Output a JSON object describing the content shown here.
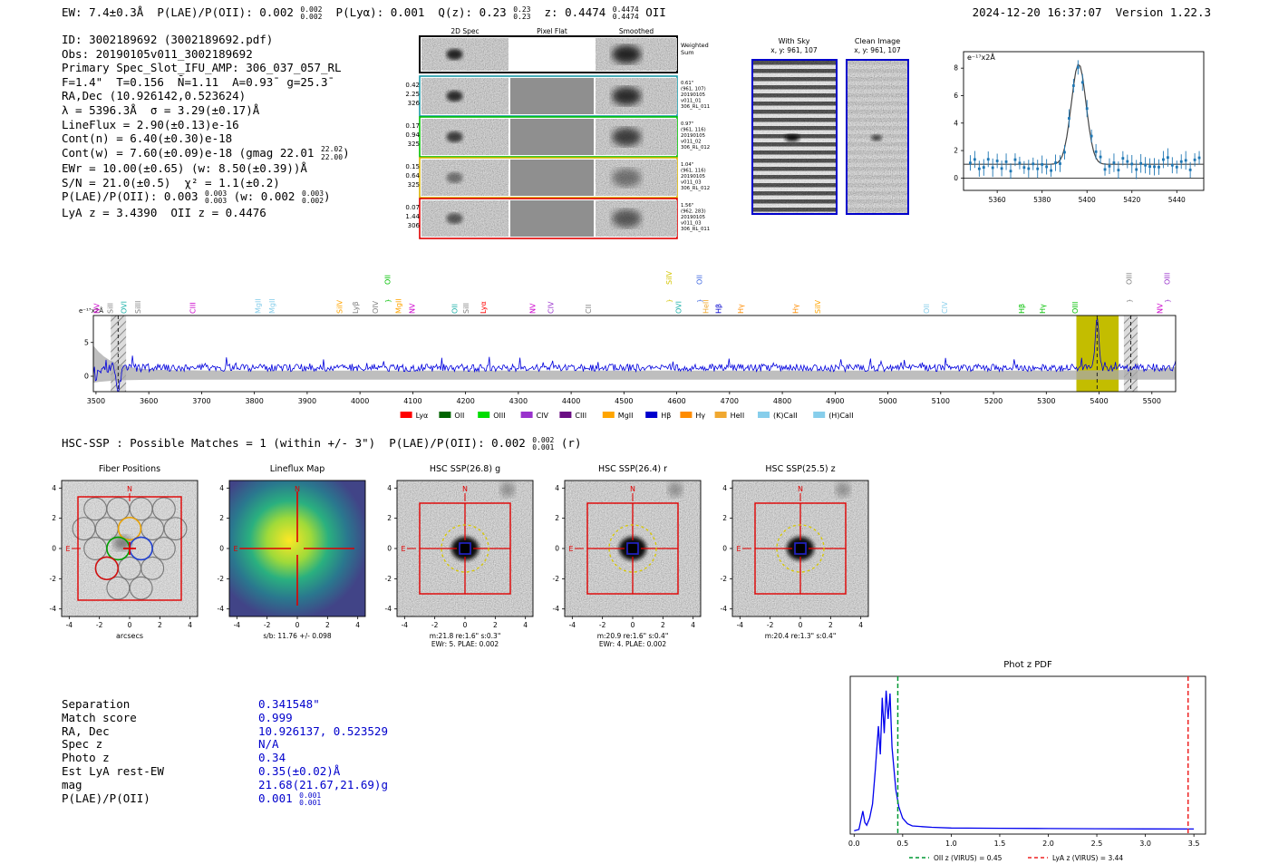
{
  "meta": {
    "timestamp": "2024-12-20 16:37:07",
    "version": "Version 1.22.3"
  },
  "header": {
    "segments": [
      {
        "t": "EW: 7.4±0.3Å  P(LAE)/P(OII): 0.002 "
      },
      {
        "sup": "0.002",
        "sub": "0.002"
      },
      {
        "t": "  P(Lyα): 0.001  Q(z): 0.23 "
      },
      {
        "sup": "0.23",
        "sub": "0.23"
      },
      {
        "t": "  z: 0.4474 "
      },
      {
        "sup": "0.4474",
        "sub": "0.4474"
      },
      {
        "t": " OII"
      }
    ]
  },
  "info": {
    "lines": [
      [
        {
          "t": "ID: 3002189692 (3002189692.pdf)"
        }
      ],
      [
        {
          "t": "Obs: 20190105v011_3002189692"
        }
      ],
      [
        {
          "t": "Primary Spec_Slot_IFU_AMP: 306_037_057_RL"
        }
      ],
      [
        {
          "t": "F=1.4\"  T=0.156  N̄=1.11  A=0.93̄  g=25.3̄"
        }
      ],
      [
        {
          "t": "RA,Dec (10.926142,0.523624)"
        }
      ],
      [
        {
          "t": "λ = 5396.3Å  σ = 3.29(±0.17)Å"
        }
      ],
      [
        {
          "t": "LineFlux = 2.90(±0.13)e-16"
        }
      ],
      [
        {
          "t": "Cont(n) = 6.40(±0.30)e-18"
        }
      ],
      [
        {
          "t": "Cont(w) = 7.60(±0.09)e-18 (gmag 22.01 "
        },
        {
          "sup": "22.02",
          "sub": "22.00"
        },
        {
          "t": ")"
        }
      ],
      [
        {
          "t": "EWr = 10.00(±0.65) (w: 8.50(±0.39))Å"
        }
      ],
      [
        {
          "t": "S/N = 21.0(±0.5)  χ² = 1.1(±0.2)"
        }
      ],
      [
        {
          "t": "P(LAE)/P(OII): 0.003 "
        },
        {
          "sup": "0.003",
          "sub": "0.003"
        },
        {
          "t": " (w: 0.002 "
        },
        {
          "sup": "0.003",
          "sub": "0.002"
        },
        {
          "t": ")"
        }
      ],
      [
        {
          "t": "LyA z = 3.4390  OII z = 0.4476"
        }
      ]
    ]
  },
  "spec2d": {
    "col_headers": [
      "2D Spec",
      "Pixel Flat",
      "Smoothed"
    ],
    "weighted_sum": [
      "Weighted",
      "Sum"
    ],
    "rows": [
      {
        "border": "#000000",
        "left": [],
        "right": []
      },
      {
        "border": "#1a9aa8",
        "left": [
          "0.42",
          "2.25",
          "326"
        ],
        "right": [
          "0.61\"",
          "(961, 107)",
          "20190105",
          "v011_01",
          "306_RL_011"
        ]
      },
      {
        "border": "#00c000",
        "left": [
          "0.17",
          "0.94",
          "325"
        ],
        "right": [
          "0.97\"",
          "(961, 116)",
          "20190105",
          "v011_02",
          "306_RL_012"
        ]
      },
      {
        "border": "#d8b400",
        "left": [
          "0.15",
          "0.64",
          "325"
        ],
        "right": [
          "1.04\"",
          "(961, 116)",
          "20190105",
          "v011_03",
          "306_RL_012"
        ]
      },
      {
        "border": "#e00000",
        "left": [
          "0.07",
          "1.44",
          "306"
        ],
        "right": [
          "1.56\"",
          "(962, 283)",
          "20190105",
          "v011_03",
          "306_RL_011"
        ]
      }
    ]
  },
  "sky_panels": {
    "with_sky": {
      "title": "With Sky",
      "coords": "x, y: 961, 107"
    },
    "clean": {
      "title": "Clean Image",
      "coords": "x, y: 961, 107"
    },
    "border_color": "#0000cc"
  },
  "chart_data": [
    {
      "id": "zoom_spectrum",
      "type": "line",
      "ylabel": "e⁻¹⁷x2Å",
      "x_ticks": [
        5360,
        5380,
        5400,
        5420,
        5440
      ],
      "y_ticks": [
        0,
        2,
        4,
        6,
        8
      ],
      "xlim": [
        5345,
        5452
      ],
      "ylim": [
        -0.9,
        9.2
      ],
      "gaussian_fit": {
        "center": 5396.3,
        "sigma": 3.29,
        "peak": 8.3,
        "baseline": 1.0
      },
      "point_color": "#1f77b4",
      "fit_color": "#444444"
    },
    {
      "id": "full_spectrum",
      "type": "line",
      "ylabel": "e⁻¹⁷x2Å",
      "x_ticks": [
        3500,
        3600,
        3700,
        3800,
        3900,
        4000,
        4100,
        4200,
        4300,
        4400,
        4500,
        4600,
        4700,
        4800,
        4900,
        5000,
        5100,
        5200,
        5300,
        5400,
        5500
      ],
      "y_ticks": [
        0,
        5
      ],
      "xlim": [
        3495,
        5545
      ],
      "ylim": [
        -2.3,
        9
      ],
      "emission_line": {
        "wavelength": 5396.3,
        "peak": 7.4,
        "sigma": 3.4
      },
      "absorption_dip": {
        "wavelength": 3542,
        "depth": -3.6
      },
      "highlight_band": {
        "x0": 5357,
        "x1": 5437,
        "color": "#c3bd00"
      },
      "hatched_bands": [
        [
          3528,
          3557
        ],
        [
          5447,
          5473
        ]
      ],
      "dashed_lines": [
        3542,
        5396.3,
        5460
      ],
      "line_color": "#0000dd",
      "envelope_color": "#a8a8a8",
      "legend": [
        {
          "label": "Lyα",
          "color": "#ff0000"
        },
        {
          "label": "OII",
          "color": "#006400"
        },
        {
          "label": "OIII",
          "color": "#00dd00"
        },
        {
          "label": "CIV",
          "color": "#9932cc"
        },
        {
          "label": "CIII",
          "color": "#6a0d83"
        },
        {
          "label": "MgII",
          "color": "#ffa500"
        },
        {
          "label": "Hβ",
          "color": "#0000cd"
        },
        {
          "label": "Hγ",
          "color": "#ff8c00"
        },
        {
          "label": "HeII",
          "color": "#f0a830"
        },
        {
          "label": "(K)CaII",
          "color": "#87ceeb"
        },
        {
          "label": "(H)CaII",
          "color": "#87ceeb"
        }
      ],
      "line_labels": [
        {
          "label": "NV",
          "wl": 3506,
          "color": "#cc00cc",
          "tall": false
        },
        {
          "label": "SiII",
          "wl": 3532,
          "color": "#808080",
          "tall": false
        },
        {
          "label": "OVI",
          "wl": 3558,
          "color": "#20b2aa",
          "tall": false
        },
        {
          "label": "SiIII",
          "wl": 3584,
          "color": "#808080",
          "tall": false
        },
        {
          "label": "CIII",
          "wl": 3688,
          "color": "#cc00cc",
          "tall": false
        },
        {
          "label": "MgII",
          "wl": 3812,
          "color": "#87ceeb",
          "tall": false
        },
        {
          "label": "MgII",
          "wl": 3838,
          "color": "#87ceeb",
          "tall": false
        },
        {
          "label": "SiIV",
          "wl": 3966,
          "color": "#ffa500",
          "tall": false
        },
        {
          "label": "Lyβ",
          "wl": 3996,
          "color": "#808080",
          "tall": false
        },
        {
          "label": "OIV",
          "wl": 4034,
          "color": "#808080",
          "tall": false
        },
        {
          "label": "OII",
          "wl": 4057,
          "color": "#00c000",
          "tall": true
        },
        {
          "label": "MgII",
          "wl": 4078,
          "color": "#ffa500",
          "tall": false
        },
        {
          "label": "NV",
          "wl": 4104,
          "color": "#cc00cc",
          "tall": false
        },
        {
          "label": "OII",
          "wl": 4184,
          "color": "#20b2aa",
          "tall": false
        },
        {
          "label": "SiII",
          "wl": 4206,
          "color": "#808080",
          "tall": false
        },
        {
          "label": "Lyα",
          "wl": 4238,
          "color": "#ff0000",
          "tall": false
        },
        {
          "label": "NV",
          "wl": 4332,
          "color": "#cc00cc",
          "tall": false
        },
        {
          "label": "CIV",
          "wl": 4366,
          "color": "#9932cc",
          "tall": false
        },
        {
          "label": "CII",
          "wl": 4438,
          "color": "#808080",
          "tall": false
        },
        {
          "label": "SiIV",
          "wl": 4590,
          "color": "#d4c400",
          "tall": true
        },
        {
          "label": "OVI",
          "wl": 4608,
          "color": "#20b2aa",
          "tall": false
        },
        {
          "label": "OII",
          "wl": 4648,
          "color": "#4169e1",
          "tall": true
        },
        {
          "label": "HeII",
          "wl": 4660,
          "color": "#f0a830",
          "tall": false
        },
        {
          "label": "Hβ",
          "wl": 4684,
          "color": "#0000cd",
          "tall": false
        },
        {
          "label": "Hγ",
          "wl": 4726,
          "color": "#ff8c00",
          "tall": false
        },
        {
          "label": "Hγ",
          "wl": 4830,
          "color": "#ff8c00",
          "tall": false
        },
        {
          "label": "SiIV",
          "wl": 4872,
          "color": "#ffa500",
          "tall": false
        },
        {
          "label": "OII",
          "wl": 5078,
          "color": "#87ceeb",
          "tall": false
        },
        {
          "label": "CIV",
          "wl": 5112,
          "color": "#87ceeb",
          "tall": false
        },
        {
          "label": "Hβ",
          "wl": 5258,
          "color": "#00c000",
          "tall": false
        },
        {
          "label": "Hγ",
          "wl": 5298,
          "color": "#00c000",
          "tall": false
        },
        {
          "label": "OIII",
          "wl": 5360,
          "color": "#00c000",
          "tall": false
        },
        {
          "label": "OIII",
          "wl": 5462,
          "color": "#808080",
          "tall": true
        },
        {
          "label": "NV",
          "wl": 5520,
          "color": "#cc00cc",
          "tall": false
        },
        {
          "label": "OIII",
          "wl": 5534,
          "color": "#9932cc",
          "tall": true
        }
      ]
    },
    {
      "id": "photz_pdf",
      "type": "line",
      "title": "Phot z PDF",
      "x_ticks": [
        0.0,
        0.5,
        1.0,
        1.5,
        2.0,
        2.5,
        3.0,
        3.5
      ],
      "xlim": [
        -0.04,
        3.62
      ],
      "color": "#0000ee",
      "curve": {
        "x": [
          0,
          0.05,
          0.09,
          0.11,
          0.13,
          0.16,
          0.19,
          0.22,
          0.25,
          0.27,
          0.29,
          0.31,
          0.33,
          0.35,
          0.37,
          0.39,
          0.41,
          0.43,
          0.46,
          0.5,
          0.55,
          0.6,
          0.7,
          0.8,
          1.0,
          1.5,
          2.0,
          2.5,
          3.0,
          3.5
        ],
        "y": [
          0.01,
          0.02,
          0.15,
          0.07,
          0.05,
          0.1,
          0.2,
          0.45,
          0.75,
          0.55,
          0.95,
          0.7,
          1.0,
          0.8,
          0.98,
          0.6,
          0.45,
          0.3,
          0.18,
          0.1,
          0.06,
          0.045,
          0.04,
          0.035,
          0.03,
          0.028,
          0.026,
          0.025,
          0.024,
          0.023
        ]
      },
      "vlines": [
        {
          "x": 0.45,
          "color": "#009933",
          "label": "OII z (VIRUS) = 0.45"
        },
        {
          "x": 3.44,
          "color": "#ee2222",
          "label": "LyA z (VIRUS) = 3.44"
        }
      ]
    }
  ],
  "cutouts": {
    "header_segments": [
      {
        "t": "HSC-SSP : Possible Matches = 1 (within +/- 3\")  P(LAE)/P(OII): 0.002 "
      },
      {
        "sup": "0.002",
        "sub": "0.001"
      },
      {
        "t": " (r)"
      }
    ],
    "axis_ticks": [
      -4,
      -2,
      0,
      2,
      4
    ],
    "compass_n": "N",
    "compass_e": "E",
    "panels": [
      {
        "title": "Fiber Positions",
        "xlabel": "arcsecs",
        "sub1": "",
        "sub2": ""
      },
      {
        "title": "Lineflux Map",
        "xlabel": "",
        "sub1": "s/b: 11.76 +/- 0.098",
        "sub2": ""
      },
      {
        "title": "HSC SSP(26.8) g",
        "xlabel": "",
        "sub1": "m:21.8 re:1.6\" s:0.3\"",
        "sub2": "EWr: 5. PLAE: 0.002"
      },
      {
        "title": "HSC SSP(26.4) r",
        "xlabel": "",
        "sub1": "m:20.9 re:1.6\" s:0.4\"",
        "sub2": "EWr: 4. PLAE: 0.002"
      },
      {
        "title": "HSC SSP(25.5) z",
        "xlabel": "",
        "sub1": "m:20.4 re:1.3\" s:0.4\"",
        "sub2": ""
      }
    ]
  },
  "match_table": {
    "rows": [
      {
        "key": "Separation",
        "value": "0.341548\""
      },
      {
        "key": "Match score",
        "value": "0.999"
      },
      {
        "key": "RA, Dec",
        "value": "10.926137, 0.523529"
      },
      {
        "key": "Spec z",
        "value": "N/A"
      },
      {
        "key": "Photo z",
        "value": "0.34"
      },
      {
        "key": "Est LyA rest-EW",
        "value": "0.35(±0.02)Å"
      },
      {
        "key": "mag",
        "value": "21.68(21.67,21.69)g"
      },
      {
        "key": "P(LAE)/P(OII)",
        "value": "0.001",
        "sup": "0.001",
        "sub": "0.001"
      }
    ]
  }
}
